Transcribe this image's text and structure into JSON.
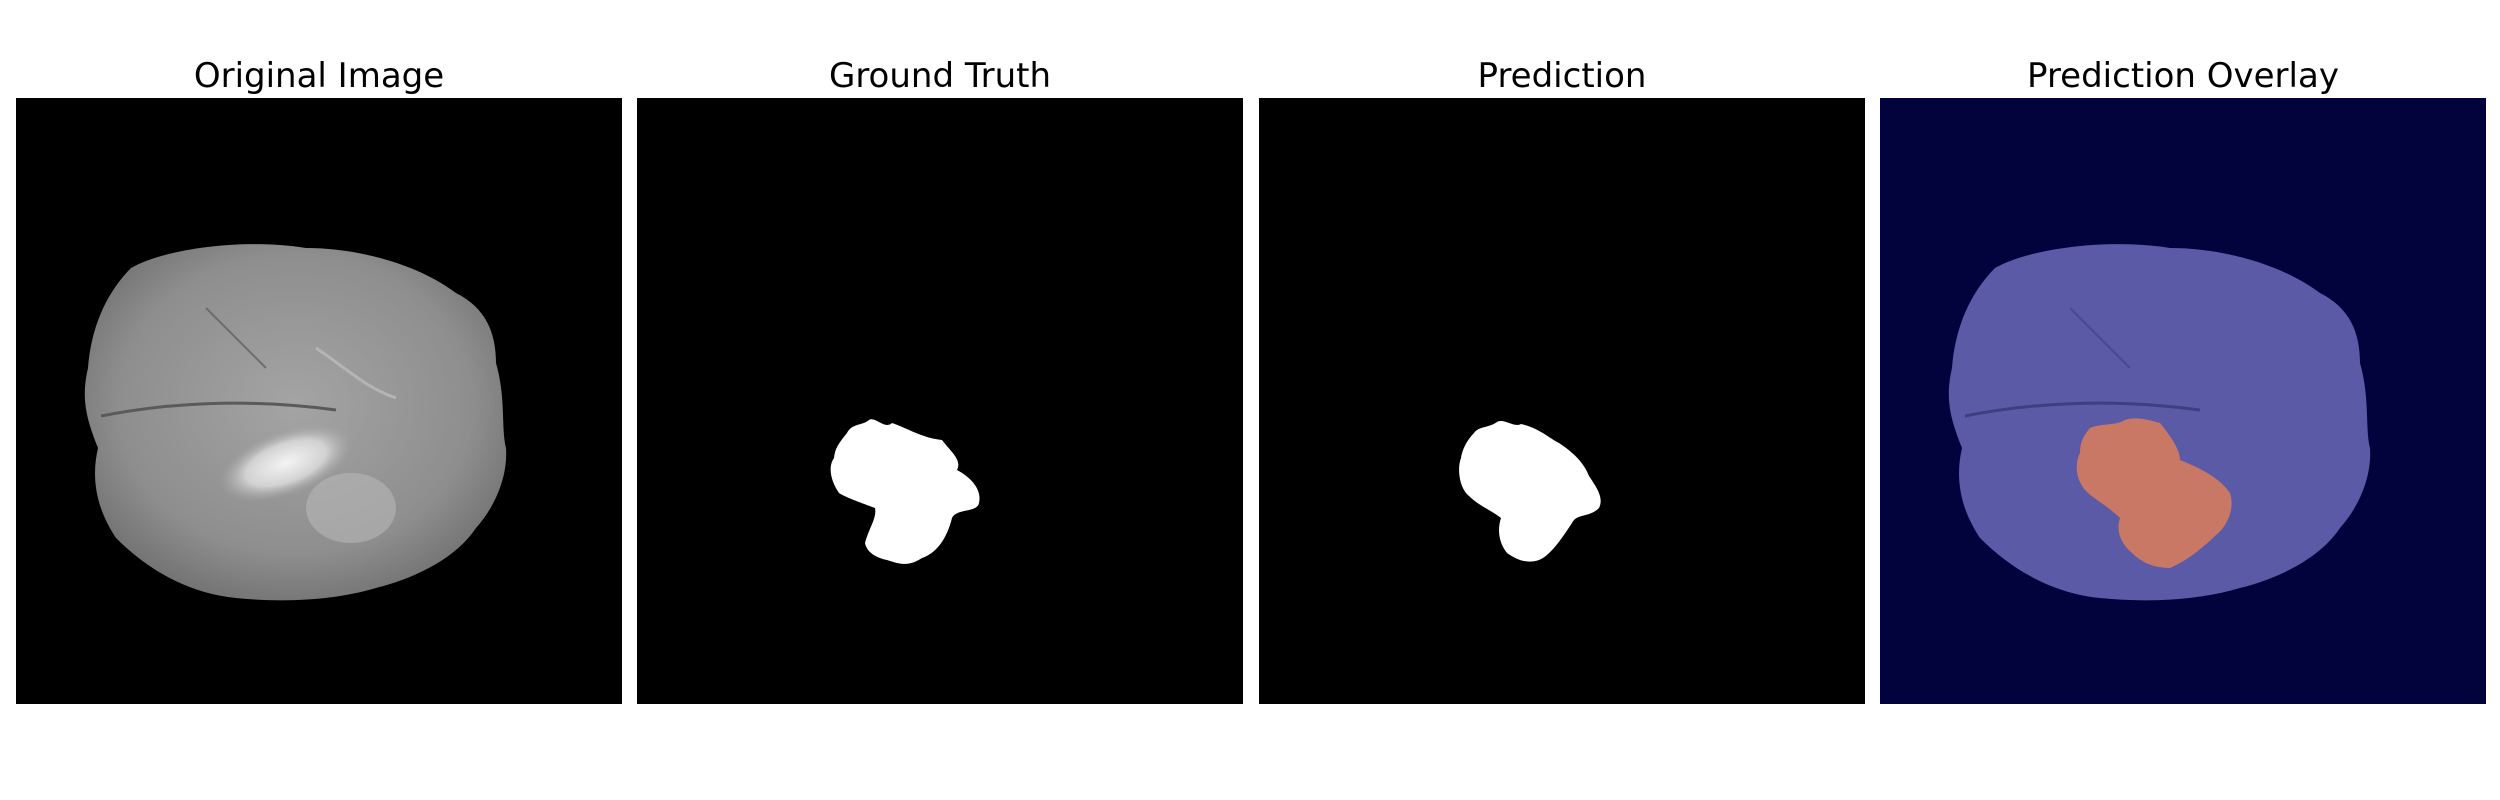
{
  "figure": {
    "panels": [
      {
        "title": "Original Image",
        "kind": "mri-slice"
      },
      {
        "title": "Ground Truth",
        "kind": "binary-mask"
      },
      {
        "title": "Prediction",
        "kind": "binary-mask"
      },
      {
        "title": "Prediction Overlay",
        "kind": "overlay"
      }
    ]
  },
  "colors": {
    "background": "#000000",
    "mask": "#ffffff",
    "overlay_background": "#02023d",
    "overlay_brain": "#5a5aa6",
    "overlay_tumor": "#c97866"
  }
}
